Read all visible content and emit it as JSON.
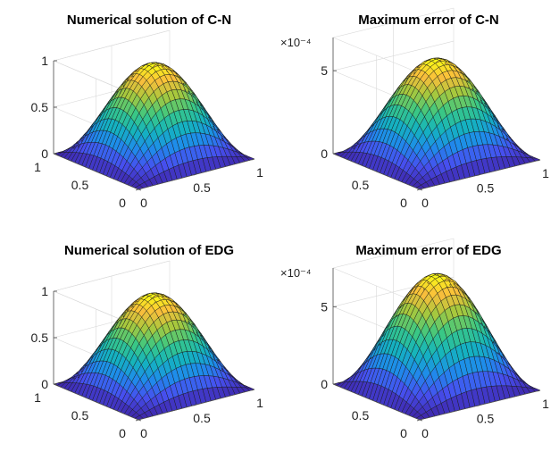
{
  "chart_data": [
    {
      "type": "surface",
      "title": "Numerical solution of C-N",
      "function": "sin(pi*x)*sin(pi*y)",
      "x_range": [
        0,
        1
      ],
      "y_range": [
        0,
        1
      ],
      "z_range": [
        0,
        1
      ],
      "z_peak": 1.0,
      "z_ticks": [
        "0",
        "0.5",
        "1"
      ],
      "x_ticks": [
        "0",
        "0.5",
        "1"
      ],
      "y_ticks": [
        "0",
        "0.5",
        "1"
      ],
      "exponent_label": "",
      "grid_n": 24,
      "colormap": "parula"
    },
    {
      "type": "surface",
      "title": "Maximum error of C-N",
      "function": "sin(pi*x)*sin(pi*y)",
      "x_range": [
        0,
        1
      ],
      "y_range": [
        0,
        1
      ],
      "z_range": [
        0,
        0.0007
      ],
      "z_peak": 0.00059,
      "z_ticks": [
        "0",
        "5"
      ],
      "z_tick_values": [
        0,
        0.0005
      ],
      "x_ticks": [
        "0",
        "0.5",
        "1"
      ],
      "y_ticks": [
        "0",
        "0.5"
      ],
      "exponent_label": "×10⁻⁴",
      "grid_n": 24,
      "colormap": "parula"
    },
    {
      "type": "surface",
      "title": "Numerical solution of EDG",
      "function": "sin(pi*x)*sin(pi*y)",
      "x_range": [
        0,
        1
      ],
      "y_range": [
        0,
        1
      ],
      "z_range": [
        0,
        1
      ],
      "z_peak": 1.0,
      "z_ticks": [
        "0",
        "0.5",
        "1"
      ],
      "x_ticks": [
        "0",
        "0.5",
        "1"
      ],
      "y_ticks": [
        "0",
        "0.5",
        "1"
      ],
      "exponent_label": "",
      "grid_n": 24,
      "colormap": "parula"
    },
    {
      "type": "surface",
      "title": "Maximum error of EDG",
      "function": "sin(pi*x)*sin(pi*y)",
      "x_range": [
        0,
        1
      ],
      "y_range": [
        0,
        1
      ],
      "z_range": [
        0,
        0.00075
      ],
      "z_peak": 0.00073,
      "z_ticks": [
        "0",
        "5"
      ],
      "z_tick_values": [
        0,
        0.0005
      ],
      "x_ticks": [
        "0",
        "0.5",
        "1"
      ],
      "y_ticks": [
        "0",
        "0.5"
      ],
      "exponent_label": "×10⁻⁴",
      "grid_n": 24,
      "colormap": "parula"
    }
  ],
  "colors": {
    "background": "#ffffff",
    "axis": "#4d4d4d",
    "grid": "#d9d9d9",
    "mesh": "#1a1a1a"
  }
}
